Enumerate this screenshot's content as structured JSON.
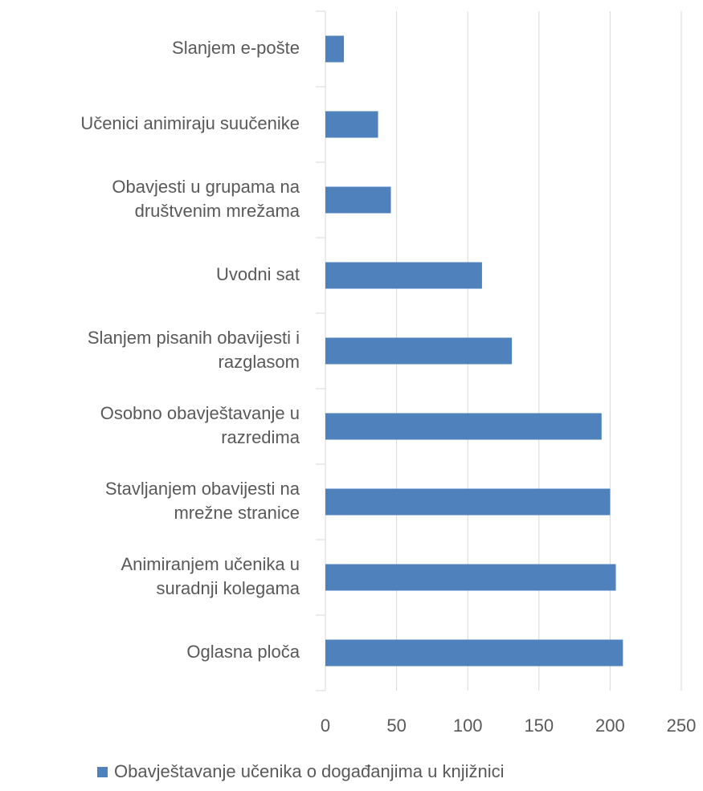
{
  "chart_data": {
    "type": "bar",
    "orientation": "horizontal",
    "categories": [
      "Slanjem e-pošte",
      "Učenici animiraju suučenike",
      "Obavjesti u grupama na\ndruštvenim mrežama",
      "Uvodni sat",
      "Slanjem pisanih obavijesti i\nrazglasom",
      "Osobno obavještavanje u\nrazredima",
      "Stavljanjem obavijesti na\nmrežne stranice",
      "Animiranjem učenika u\nsuradnji kolegama",
      "Oglasna ploča"
    ],
    "series": [
      {
        "name": "Obavještavanje učenika o događanjima u knjižnici",
        "color": "#4f81bd",
        "values": [
          13,
          37,
          46,
          110,
          131,
          194,
          200,
          204,
          209
        ]
      }
    ],
    "xlim": [
      0,
      250
    ],
    "xticks": [
      0,
      50,
      100,
      150,
      200,
      250
    ],
    "grid": true,
    "legend": "bottom"
  }
}
